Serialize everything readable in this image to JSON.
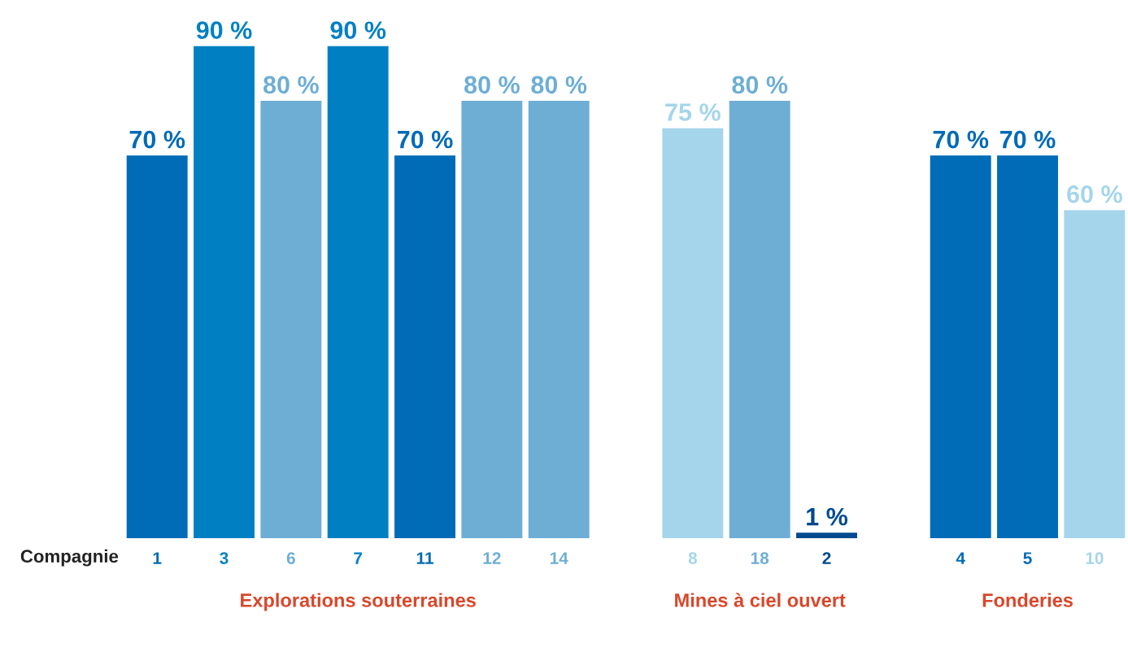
{
  "chart_data": {
    "type": "bar",
    "xlabel": "Compagnie",
    "categories": [
      "1",
      "3",
      "6",
      "7",
      "11",
      "12",
      "14",
      null,
      "8",
      "18",
      "2",
      null,
      "4",
      "5",
      "10"
    ],
    "values": [
      70,
      90,
      80,
      90,
      70,
      80,
      80,
      null,
      75,
      80,
      1,
      null,
      70,
      70,
      60
    ],
    "value_labels": [
      "70 %",
      "90 %",
      "80 %",
      "90 %",
      "70 %",
      "80 %",
      "80 %",
      null,
      "75 %",
      "80 %",
      "1 %",
      null,
      "70 %",
      "70 %",
      "60 %"
    ],
    "colors": [
      "#006bb6",
      "#0080c3",
      "#6eaed5",
      "#0080c3",
      "#006bb6",
      "#6eaed5",
      "#6eaed5",
      "#6eaed5",
      "#a5d5eb",
      "#6eaed5",
      "#004a8f",
      "#6eaed5",
      "#006bb6",
      "#006bb6",
      "#a5d5eb"
    ],
    "annotations": [
      "Explorations souterraines",
      "Mines à ciel ouvert",
      "Fonderies"
    ],
    "grid": false,
    "legend": false
  }
}
